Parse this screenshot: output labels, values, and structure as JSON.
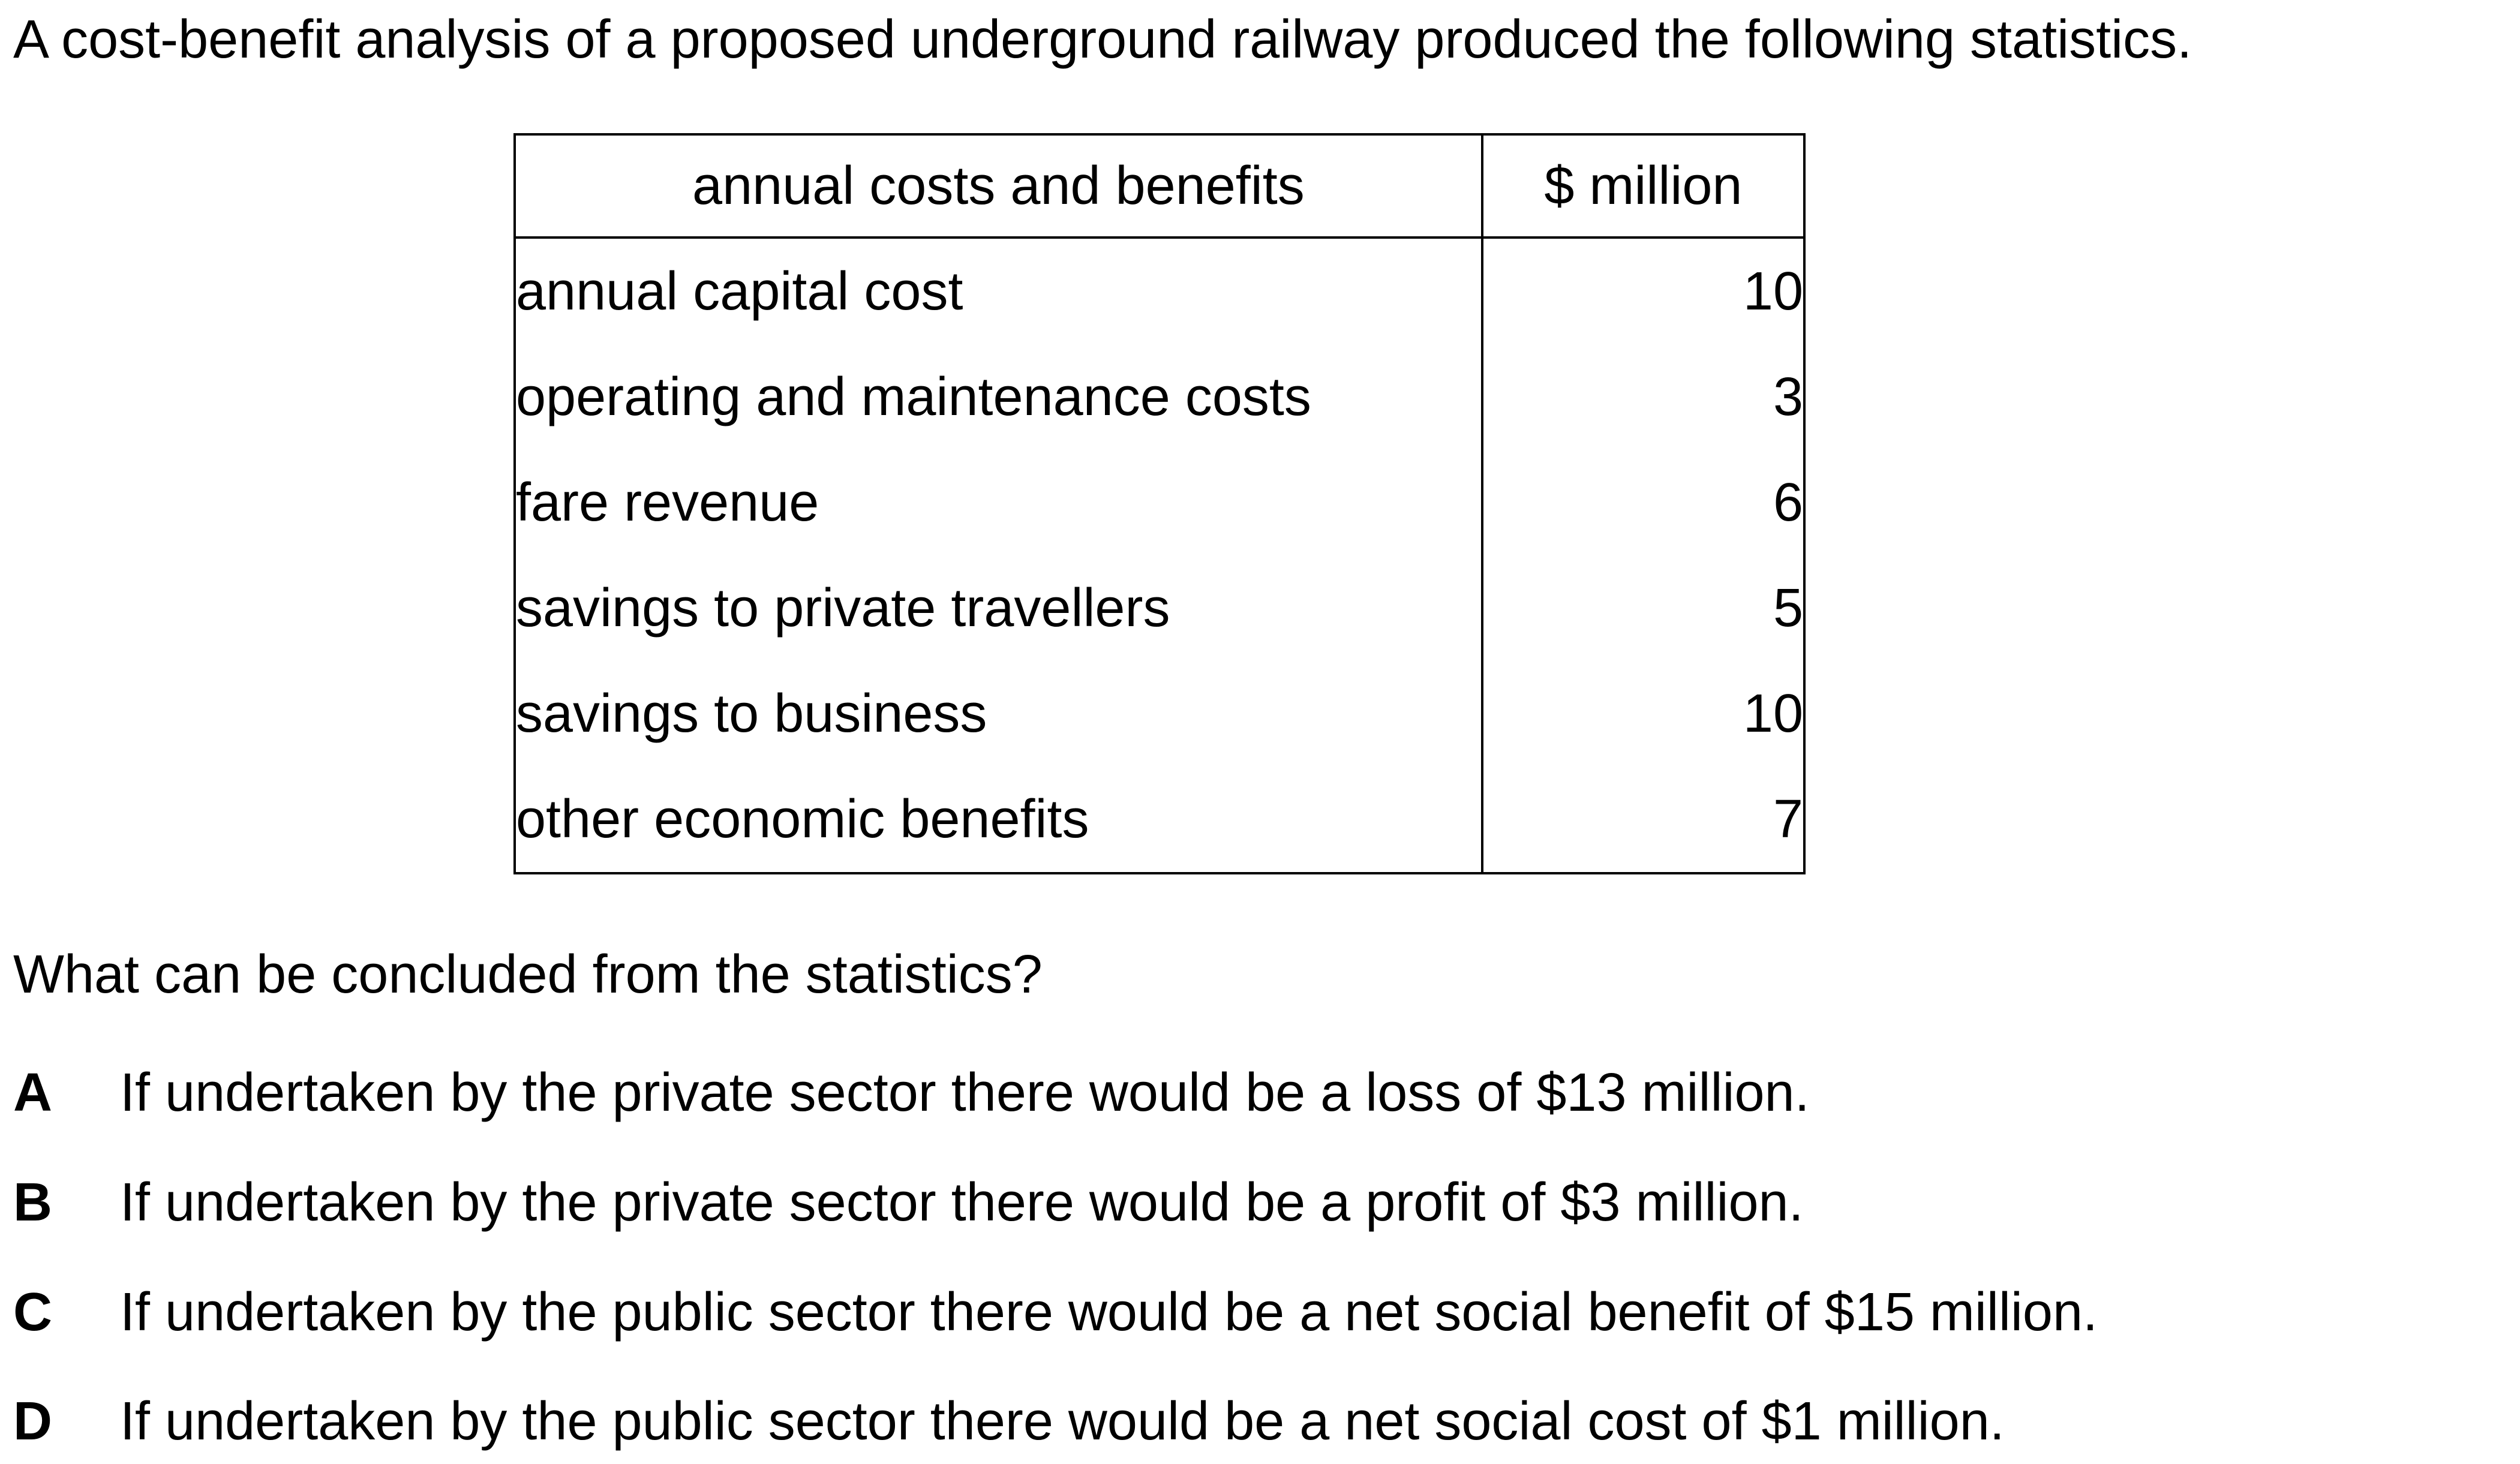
{
  "intro": "A cost-benefit analysis of a proposed underground railway produced the following statistics.",
  "table": {
    "headers": [
      "annual costs and benefits",
      "$ million"
    ],
    "rows": [
      {
        "item": "annual capital cost",
        "value": "10"
      },
      {
        "item": "operating and maintenance costs",
        "value": "3"
      },
      {
        "item": "fare revenue",
        "value": "6"
      },
      {
        "item": "savings to private travellers",
        "value": "5"
      },
      {
        "item": "savings to business",
        "value": "10"
      },
      {
        "item": "other economic benefits",
        "value": "7"
      }
    ]
  },
  "question": "What can be concluded from the statistics?",
  "options": [
    {
      "letter": "A",
      "text": "If undertaken by the private sector there would be a loss of $13 million."
    },
    {
      "letter": "B",
      "text": "If undertaken by the private sector there would be a profit of $3 million."
    },
    {
      "letter": "C",
      "text": "If undertaken by the public sector there would be a net social benefit of $15 million."
    },
    {
      "letter": "D",
      "text": "If undertaken by the public sector there would be a net social cost of $1 million."
    }
  ]
}
